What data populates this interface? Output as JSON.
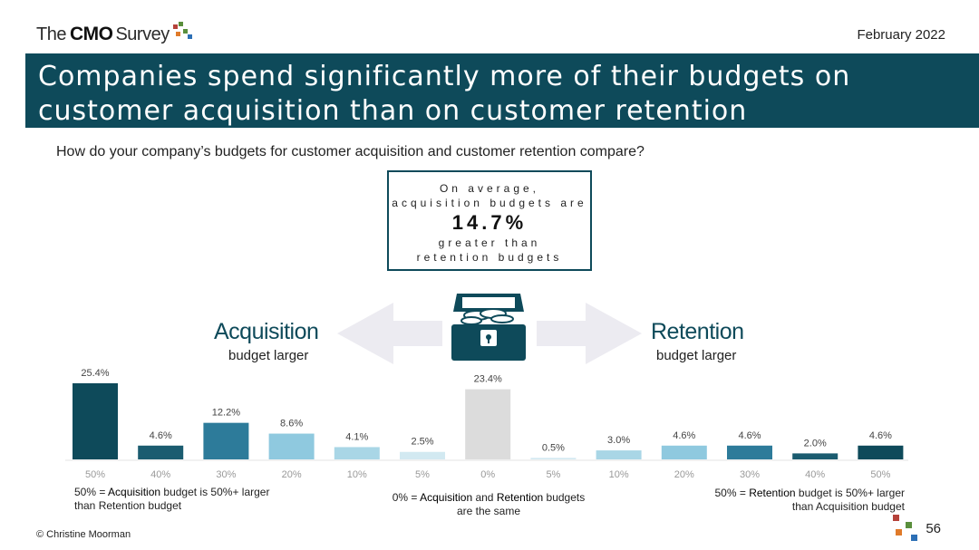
{
  "header": {
    "logo_the": "The",
    "logo_cmo": "CMO",
    "logo_survey": "Survey",
    "date": "February 2022"
  },
  "banner": {
    "title": "Companies spend significantly more of their budgets on customer acquisition than on customer retention"
  },
  "question": "How do your company’s budgets for customer acquisition and customer retention compare?",
  "average_box": {
    "line1": "On average,",
    "line2": "acquisition budgets are",
    "value": "14.7%",
    "line3": "greater than",
    "line4": "retention budgets"
  },
  "left_label": {
    "title": "Acquisition",
    "subtitle": "budget larger"
  },
  "right_label": {
    "title": "Retention",
    "subtitle": "budget larger"
  },
  "chart_data": {
    "type": "bar",
    "title": "",
    "xlabel": "",
    "ylabel": "",
    "ylim": [
      0,
      27
    ],
    "grid": false,
    "categories": [
      "50%",
      "40%",
      "30%",
      "20%",
      "10%",
      "5%",
      "0%",
      "5%",
      "10%",
      "20%",
      "30%",
      "40%",
      "50%"
    ],
    "values": [
      25.4,
      4.6,
      12.2,
      8.6,
      4.1,
      2.5,
      23.4,
      0.5,
      3.0,
      4.6,
      4.6,
      2.0,
      4.6
    ],
    "data_labels": [
      "25.4%",
      "4.6%",
      "12.2%",
      "8.6%",
      "4.1%",
      "2.5%",
      "23.4%",
      "0.5%",
      "3.0%",
      "4.6%",
      "4.6%",
      "2.0%",
      "4.6%"
    ],
    "colors": [
      "#0e4a5a",
      "#1b5c70",
      "#2d7b9a",
      "#8fc9df",
      "#a9d6e6",
      "#d2e9f1",
      "#dcdcdc",
      "#d2e9f1",
      "#a9d6e6",
      "#8fc9df",
      "#2d7b9a",
      "#1b5c70",
      "#0e4a5a"
    ]
  },
  "footnotes": {
    "left_line1_pre": "50% = ",
    "left_line1_bold": "Acquisition",
    "left_line1_post": " budget is 50%+ larger",
    "left_line2": "than Retention budget",
    "center_line1_pre": "0% = ",
    "center_line1_bold1": "Acquisition",
    "center_line1_mid": " and ",
    "center_line1_bold2": "Retention",
    "center_line1_post": " budgets",
    "center_line2": "are the same",
    "right_line1_pre": "50% = ",
    "right_line1_bold": "Retention",
    "right_line1_post": " budget is 50%+ larger",
    "right_line2": "than Acquisition budget"
  },
  "copyright": "© Christine Moorman",
  "page_number": "56",
  "colors": {
    "brand_teal": "#0e4a5a",
    "logo_orange": "#e07b2a",
    "logo_green": "#5a8f3c",
    "logo_blue": "#2c6fb5",
    "logo_red": "#b5423a"
  }
}
